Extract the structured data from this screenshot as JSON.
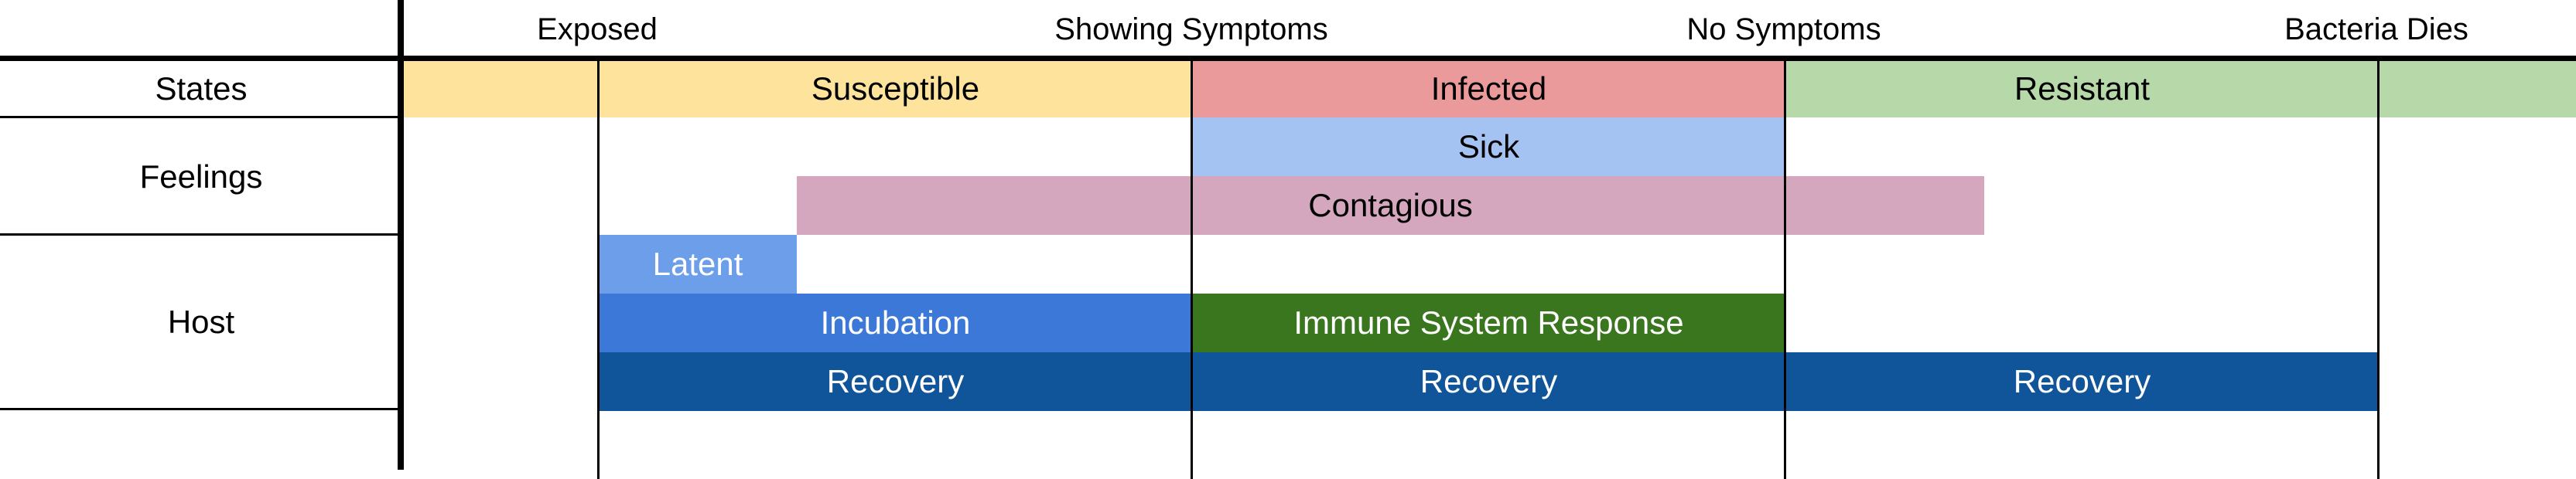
{
  "columns": [
    {
      "label": "Exposed"
    },
    {
      "label": "Showing Symptoms"
    },
    {
      "label": "No Symptoms"
    },
    {
      "label": "Bacteria Dies"
    }
  ],
  "rows": {
    "states": "States",
    "feelings": "Feelings",
    "host": "Host"
  },
  "bars": {
    "susceptible": "Susceptible",
    "infected": "Infected",
    "resistant": "Resistant",
    "sick": "Sick",
    "contagious": "Contagious",
    "latent": "Latent",
    "incubation": "Incubation",
    "immune_response": "Immune System Response",
    "recovery_1": "Recovery",
    "recovery_2": "Recovery",
    "recovery_3": "Recovery"
  },
  "colors": {
    "susceptible": "#FEE39D",
    "infected": "#EA9A9A",
    "resistant": "#B7D9A9",
    "sick": "#A4C3F2",
    "contagious": "#D5A7BF",
    "latent": "#6D9EEA",
    "incubation": "#3C78D8",
    "immune_response": "#39761E",
    "recovery": "#105499"
  }
}
